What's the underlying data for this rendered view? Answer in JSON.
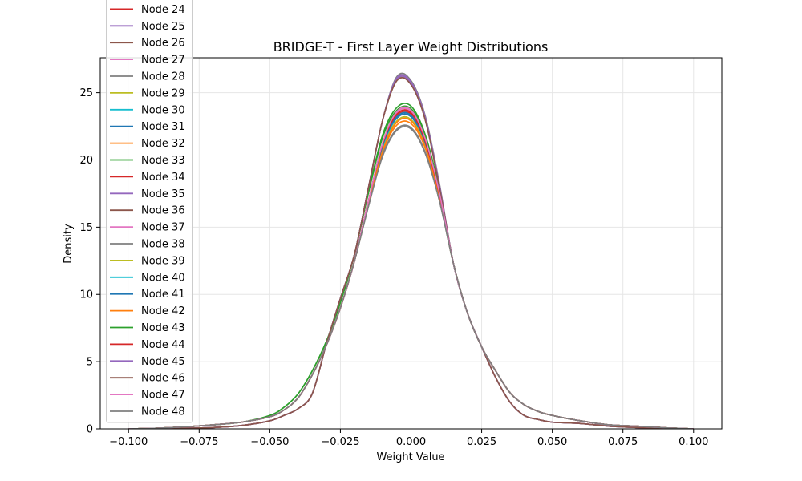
{
  "chart_data": {
    "type": "line",
    "title": "BRIDGE-T - First Layer Weight Distributions",
    "xlabel": "Weight Value",
    "ylabel": "Density",
    "xlim": [
      -0.11,
      0.11
    ],
    "ylim": [
      0,
      27.6
    ],
    "xticks": [
      -0.1,
      -0.075,
      -0.05,
      -0.025,
      0.0,
      0.025,
      0.05,
      0.075,
      0.1
    ],
    "xtick_labels": [
      "−0.100",
      "−0.075",
      "−0.050",
      "−0.025",
      "0.000",
      "0.025",
      "0.050",
      "0.075",
      "0.100"
    ],
    "yticks": [
      0,
      5,
      10,
      15,
      20,
      25
    ],
    "ytick_labels": [
      "0",
      "5",
      "10",
      "15",
      "20",
      "25"
    ],
    "grid": true,
    "legend_position": "top-left",
    "x": [
      -0.1,
      -0.09,
      -0.08,
      -0.07,
      -0.06,
      -0.05,
      -0.045,
      -0.04,
      -0.035,
      -0.03,
      -0.025,
      -0.02,
      -0.015,
      -0.01,
      -0.005,
      0.0,
      0.005,
      0.01,
      0.015,
      0.02,
      0.025,
      0.03,
      0.035,
      0.04,
      0.045,
      0.05,
      0.06,
      0.07,
      0.08,
      0.09,
      0.1
    ],
    "series": [
      {
        "name": "Node 24",
        "color": "#d62728",
        "values": [
          0.0,
          0.05,
          0.15,
          0.3,
          0.5,
          0.9,
          1.4,
          2.3,
          4.0,
          6.2,
          9.0,
          12.5,
          17.0,
          21.2,
          23.3,
          23.4,
          21.4,
          17.5,
          12.3,
          8.6,
          6.1,
          4.3,
          2.7,
          1.8,
          1.3,
          1.0,
          0.6,
          0.3,
          0.2,
          0.08,
          0.0
        ]
      },
      {
        "name": "Node 25",
        "color": "#9467bd",
        "values": [
          0.0,
          0.02,
          0.05,
          0.1,
          0.25,
          0.6,
          1.0,
          1.5,
          2.6,
          6.3,
          9.7,
          13.0,
          18.0,
          23.0,
          26.1,
          25.8,
          23.2,
          18.2,
          12.3,
          8.6,
          6.1,
          3.8,
          2.0,
          1.0,
          0.7,
          0.5,
          0.4,
          0.2,
          0.1,
          0.04,
          0.0
        ]
      },
      {
        "name": "Node 26",
        "color": "#8c564b",
        "values": [
          0.0,
          0.02,
          0.05,
          0.1,
          0.25,
          0.6,
          1.0,
          1.5,
          2.6,
          6.3,
          9.7,
          13.0,
          18.0,
          23.0,
          26.0,
          25.7,
          23.1,
          18.1,
          12.3,
          8.6,
          6.1,
          3.8,
          2.0,
          1.0,
          0.7,
          0.5,
          0.4,
          0.2,
          0.1,
          0.04,
          0.0
        ]
      },
      {
        "name": "Node 27",
        "color": "#e377c2",
        "values": [
          0.0,
          0.05,
          0.15,
          0.3,
          0.5,
          0.9,
          1.4,
          2.3,
          4.0,
          6.2,
          9.0,
          12.5,
          16.9,
          21.1,
          23.5,
          23.6,
          21.5,
          17.6,
          12.3,
          8.6,
          6.1,
          4.3,
          2.7,
          1.8,
          1.3,
          1.0,
          0.6,
          0.3,
          0.2,
          0.08,
          0.0
        ]
      },
      {
        "name": "Node 28",
        "color": "#7f7f7f",
        "values": [
          0.0,
          0.02,
          0.05,
          0.1,
          0.25,
          0.6,
          1.0,
          1.5,
          2.6,
          6.3,
          9.7,
          13.0,
          18.0,
          23.0,
          26.2,
          25.9,
          23.3,
          18.3,
          12.3,
          8.6,
          6.1,
          3.8,
          2.0,
          1.0,
          0.7,
          0.5,
          0.4,
          0.2,
          0.1,
          0.04,
          0.0
        ]
      },
      {
        "name": "Node 29",
        "color": "#bcbd22",
        "values": [
          0.0,
          0.05,
          0.15,
          0.3,
          0.5,
          0.9,
          1.4,
          2.3,
          4.0,
          6.2,
          9.0,
          12.5,
          16.8,
          20.8,
          22.9,
          23.0,
          21.1,
          17.3,
          12.3,
          8.6,
          6.1,
          4.3,
          2.7,
          1.8,
          1.3,
          1.0,
          0.6,
          0.3,
          0.2,
          0.08,
          0.0
        ]
      },
      {
        "name": "Node 30",
        "color": "#17becf",
        "values": [
          0.0,
          0.05,
          0.15,
          0.3,
          0.5,
          0.9,
          1.4,
          2.3,
          4.0,
          6.2,
          9.0,
          12.5,
          16.9,
          21.0,
          23.2,
          23.3,
          21.3,
          17.4,
          12.3,
          8.6,
          6.1,
          4.3,
          2.7,
          1.8,
          1.3,
          1.0,
          0.6,
          0.3,
          0.2,
          0.08,
          0.0
        ]
      },
      {
        "name": "Node 31",
        "color": "#1f77b4",
        "values": [
          0.0,
          0.05,
          0.15,
          0.3,
          0.5,
          0.9,
          1.4,
          2.3,
          4.0,
          6.2,
          9.0,
          12.5,
          16.9,
          21.0,
          23.1,
          23.2,
          21.2,
          17.4,
          12.3,
          8.6,
          6.1,
          4.3,
          2.7,
          1.8,
          1.3,
          1.0,
          0.6,
          0.3,
          0.2,
          0.08,
          0.0
        ]
      },
      {
        "name": "Node 32",
        "color": "#ff7f0e",
        "values": [
          0.0,
          0.05,
          0.15,
          0.3,
          0.5,
          0.9,
          1.4,
          2.3,
          4.0,
          6.2,
          9.0,
          12.5,
          16.7,
          20.6,
          22.6,
          22.7,
          20.9,
          17.2,
          12.3,
          8.6,
          6.1,
          4.3,
          2.7,
          1.8,
          1.3,
          1.0,
          0.6,
          0.3,
          0.2,
          0.08,
          0.0
        ]
      },
      {
        "name": "Node 33",
        "color": "#2ca02c",
        "values": [
          0.0,
          0.05,
          0.15,
          0.3,
          0.5,
          1.0,
          1.6,
          2.6,
          4.3,
          6.5,
          9.4,
          13.0,
          17.7,
          21.9,
          23.9,
          24.0,
          21.9,
          17.8,
          12.3,
          8.6,
          6.1,
          4.3,
          2.7,
          1.8,
          1.3,
          1.0,
          0.6,
          0.3,
          0.2,
          0.08,
          0.0
        ]
      },
      {
        "name": "Node 34",
        "color": "#d62728",
        "values": [
          0.0,
          0.05,
          0.15,
          0.3,
          0.5,
          0.9,
          1.4,
          2.3,
          4.0,
          6.2,
          9.0,
          12.5,
          17.0,
          21.2,
          23.4,
          23.5,
          21.4,
          17.5,
          12.3,
          8.6,
          6.1,
          4.3,
          2.7,
          1.8,
          1.3,
          1.0,
          0.6,
          0.3,
          0.2,
          0.08,
          0.0
        ]
      },
      {
        "name": "Node 35",
        "color": "#9467bd",
        "values": [
          0.0,
          0.02,
          0.05,
          0.1,
          0.25,
          0.6,
          1.0,
          1.5,
          2.6,
          6.3,
          9.7,
          13.0,
          18.0,
          23.0,
          26.1,
          25.8,
          23.2,
          18.2,
          12.3,
          8.6,
          6.1,
          3.8,
          2.0,
          1.0,
          0.7,
          0.5,
          0.4,
          0.2,
          0.1,
          0.04,
          0.0
        ]
      },
      {
        "name": "Node 36",
        "color": "#8c564b",
        "values": [
          0.0,
          0.02,
          0.05,
          0.1,
          0.25,
          0.6,
          1.0,
          1.5,
          2.6,
          6.3,
          9.7,
          13.0,
          18.0,
          23.0,
          25.9,
          25.6,
          23.0,
          18.1,
          12.3,
          8.6,
          6.1,
          3.8,
          2.0,
          1.0,
          0.7,
          0.5,
          0.4,
          0.2,
          0.1,
          0.04,
          0.0
        ]
      },
      {
        "name": "Node 37",
        "color": "#e377c2",
        "values": [
          0.0,
          0.05,
          0.15,
          0.3,
          0.5,
          0.9,
          1.4,
          2.3,
          4.0,
          6.2,
          9.0,
          12.5,
          17.0,
          21.3,
          23.6,
          23.7,
          21.6,
          17.6,
          12.3,
          8.6,
          6.1,
          4.3,
          2.7,
          1.8,
          1.3,
          1.0,
          0.6,
          0.3,
          0.2,
          0.08,
          0.0
        ]
      },
      {
        "name": "Node 38",
        "color": "#7f7f7f",
        "values": [
          0.0,
          0.05,
          0.15,
          0.3,
          0.5,
          0.9,
          1.4,
          2.3,
          4.0,
          6.2,
          9.0,
          12.5,
          16.6,
          20.4,
          22.3,
          22.4,
          20.6,
          17.0,
          12.3,
          8.6,
          6.1,
          4.3,
          2.7,
          1.8,
          1.3,
          1.0,
          0.6,
          0.3,
          0.2,
          0.08,
          0.0
        ]
      },
      {
        "name": "Node 39",
        "color": "#bcbd22",
        "values": [
          0.0,
          0.05,
          0.15,
          0.3,
          0.5,
          0.9,
          1.4,
          2.3,
          4.0,
          6.2,
          9.0,
          12.5,
          16.8,
          20.8,
          22.9,
          23.0,
          21.1,
          17.3,
          12.3,
          8.6,
          6.1,
          4.3,
          2.7,
          1.8,
          1.3,
          1.0,
          0.6,
          0.3,
          0.2,
          0.08,
          0.0
        ]
      },
      {
        "name": "Node 40",
        "color": "#17becf",
        "values": [
          0.0,
          0.05,
          0.15,
          0.3,
          0.5,
          0.9,
          1.4,
          2.3,
          4.0,
          6.2,
          9.0,
          12.5,
          16.9,
          21.0,
          23.2,
          23.3,
          21.3,
          17.4,
          12.3,
          8.6,
          6.1,
          4.3,
          2.7,
          1.8,
          1.3,
          1.0,
          0.6,
          0.3,
          0.2,
          0.08,
          0.0
        ]
      },
      {
        "name": "Node 41",
        "color": "#1f77b4",
        "values": [
          0.0,
          0.05,
          0.15,
          0.3,
          0.5,
          0.9,
          1.4,
          2.3,
          4.0,
          6.2,
          9.0,
          12.5,
          16.9,
          21.1,
          23.2,
          23.3,
          21.3,
          17.4,
          12.3,
          8.6,
          6.1,
          4.3,
          2.7,
          1.8,
          1.3,
          1.0,
          0.6,
          0.3,
          0.2,
          0.08,
          0.0
        ]
      },
      {
        "name": "Node 42",
        "color": "#ff7f0e",
        "values": [
          0.0,
          0.05,
          0.15,
          0.3,
          0.5,
          0.9,
          1.4,
          2.3,
          4.0,
          6.2,
          9.0,
          12.5,
          16.8,
          20.7,
          22.8,
          22.9,
          21.0,
          17.3,
          12.3,
          8.6,
          6.1,
          4.3,
          2.7,
          1.8,
          1.3,
          1.0,
          0.6,
          0.3,
          0.2,
          0.08,
          0.0
        ]
      },
      {
        "name": "Node 43",
        "color": "#2ca02c",
        "values": [
          0.0,
          0.05,
          0.15,
          0.3,
          0.5,
          1.0,
          1.6,
          2.6,
          4.3,
          6.5,
          9.4,
          13.0,
          17.6,
          21.7,
          23.7,
          23.8,
          21.8,
          17.7,
          12.3,
          8.6,
          6.1,
          4.3,
          2.7,
          1.8,
          1.3,
          1.0,
          0.6,
          0.3,
          0.2,
          0.08,
          0.0
        ]
      },
      {
        "name": "Node 44",
        "color": "#d62728",
        "values": [
          0.0,
          0.05,
          0.15,
          0.3,
          0.5,
          0.9,
          1.4,
          2.3,
          4.0,
          6.2,
          9.0,
          12.5,
          17.0,
          21.2,
          23.4,
          23.5,
          21.4,
          17.5,
          12.3,
          8.6,
          6.1,
          4.3,
          2.7,
          1.8,
          1.3,
          1.0,
          0.6,
          0.3,
          0.2,
          0.08,
          0.0
        ]
      },
      {
        "name": "Node 45",
        "color": "#9467bd",
        "values": [
          0.0,
          0.02,
          0.05,
          0.1,
          0.25,
          0.6,
          1.0,
          1.5,
          2.6,
          6.3,
          9.7,
          13.0,
          18.0,
          23.0,
          26.0,
          25.7,
          23.1,
          18.1,
          12.3,
          8.6,
          6.1,
          3.8,
          2.0,
          1.0,
          0.7,
          0.5,
          0.4,
          0.2,
          0.1,
          0.04,
          0.0
        ]
      },
      {
        "name": "Node 46",
        "color": "#8c564b",
        "values": [
          0.0,
          0.02,
          0.05,
          0.1,
          0.25,
          0.6,
          1.0,
          1.5,
          2.6,
          6.3,
          9.7,
          13.0,
          18.0,
          23.0,
          25.9,
          25.6,
          23.0,
          18.0,
          12.3,
          8.6,
          6.1,
          3.8,
          2.0,
          1.0,
          0.7,
          0.5,
          0.4,
          0.2,
          0.1,
          0.04,
          0.0
        ]
      },
      {
        "name": "Node 47",
        "color": "#e377c2",
        "values": [
          0.0,
          0.05,
          0.15,
          0.3,
          0.5,
          0.9,
          1.4,
          2.3,
          4.0,
          6.2,
          9.0,
          12.5,
          17.0,
          21.3,
          23.6,
          23.7,
          21.6,
          17.6,
          12.3,
          8.6,
          6.1,
          4.3,
          2.7,
          1.8,
          1.3,
          1.0,
          0.6,
          0.3,
          0.2,
          0.08,
          0.0
        ]
      },
      {
        "name": "Node 48",
        "color": "#7f7f7f",
        "values": [
          0.0,
          0.05,
          0.15,
          0.3,
          0.5,
          0.9,
          1.4,
          2.3,
          4.0,
          6.2,
          9.0,
          12.5,
          16.6,
          20.3,
          22.2,
          22.3,
          20.5,
          17.0,
          12.3,
          8.6,
          6.1,
          4.3,
          2.7,
          1.8,
          1.3,
          1.0,
          0.6,
          0.3,
          0.2,
          0.08,
          0.0
        ]
      }
    ]
  }
}
